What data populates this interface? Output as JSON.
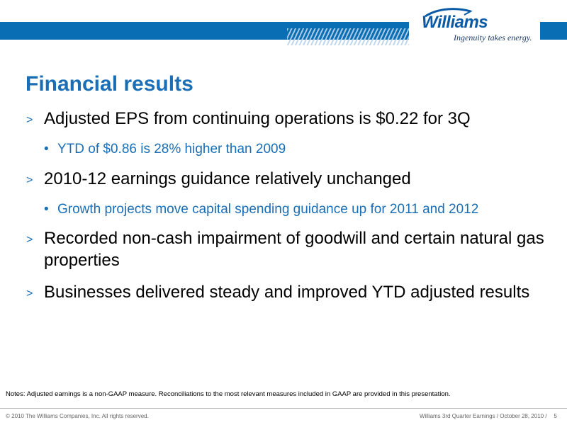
{
  "brand": {
    "name": "Williams",
    "tagline": "Ingenuity takes energy.",
    "color": "#0a6eb4"
  },
  "slide": {
    "title": "Financial results",
    "bullets": [
      {
        "text": "Adjusted EPS from continuing operations is $0.22 for 3Q",
        "sub": [
          "YTD of $0.86 is 28% higher than 2009"
        ]
      },
      {
        "text": "2010-12 earnings guidance relatively unchanged",
        "sub": [
          "Growth projects move capital spending guidance up for 2011 and 2012"
        ]
      },
      {
        "text": "Recorded non-cash impairment of goodwill and certain natural gas properties",
        "sub": []
      },
      {
        "text": "Businesses delivered steady and improved YTD adjusted results",
        "sub": []
      }
    ],
    "level1_marker": ">",
    "level2_marker": "•"
  },
  "notes": "Notes: Adjusted earnings is a non-GAAP measure. Reconciliations to the most relevant measures included in GAAP are provided in this presentation.",
  "footer": {
    "copyright": "© 2010 The Williams Companies, Inc. All rights reserved.",
    "event": "Williams 3rd Quarter Earnings / October 28, 2010 /",
    "page_number": "5"
  }
}
